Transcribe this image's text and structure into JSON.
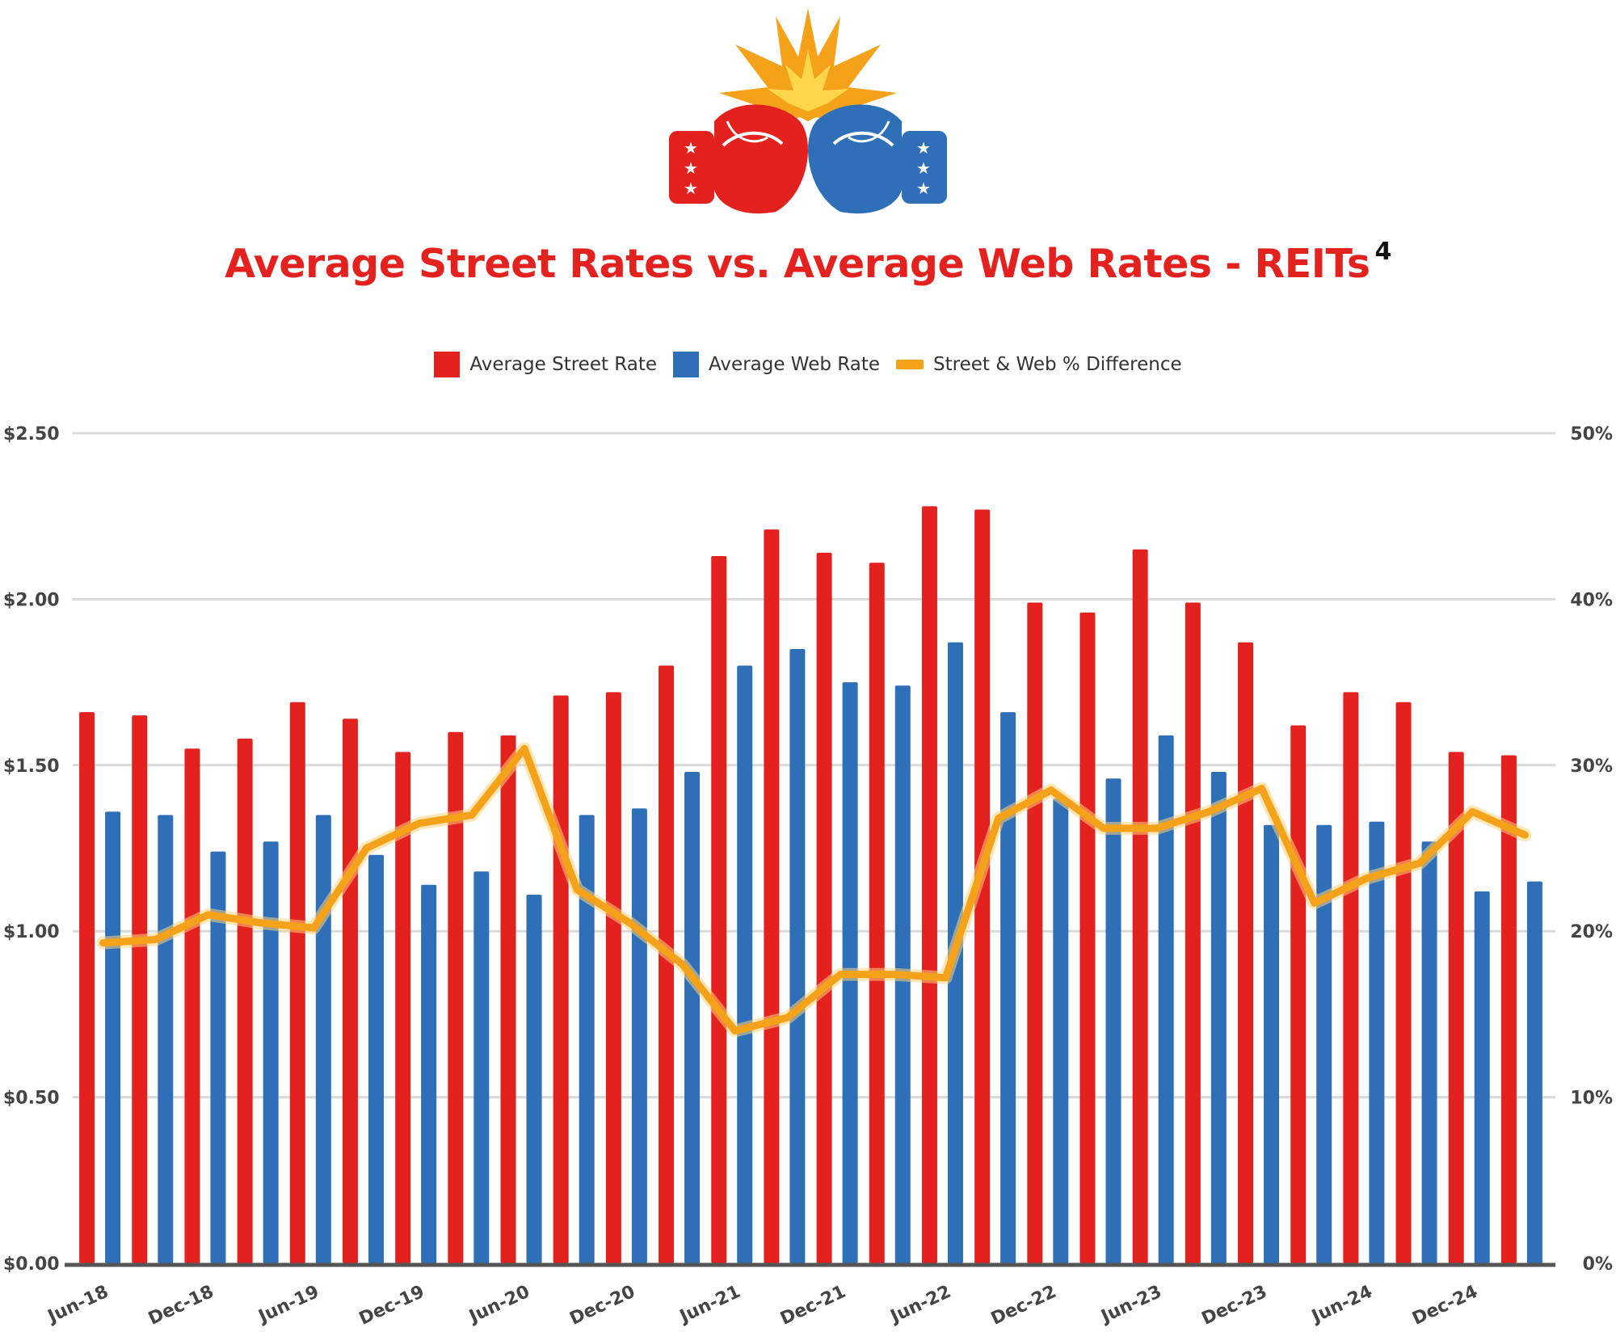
{
  "chart_data": {
    "type": "bar",
    "title": "Average Street Rates vs. Average Web Rates - REITs",
    "title_superscript": "4",
    "legend_position": "top",
    "grid": true,
    "categories": [
      "Jun-18",
      "Sep-18",
      "Dec-18",
      "Mar-19",
      "Jun-19",
      "Sep-19",
      "Dec-19",
      "Mar-20",
      "Jun-20",
      "Sep-20",
      "Dec-20",
      "Mar-21",
      "Jun-21",
      "Sep-21",
      "Dec-21",
      "Mar-22",
      "Jun-22",
      "Sep-22",
      "Dec-22",
      "Mar-23",
      "Jun-23",
      "Sep-23",
      "Dec-23",
      "Mar-24",
      "Jun-24",
      "Sep-24",
      "Dec-24",
      "Mar-25"
    ],
    "x_tick_labels": [
      "Jun-18",
      "Dec-18",
      "Jun-19",
      "Dec-19",
      "Jun-20",
      "Dec-20",
      "Jun-21",
      "Dec-21",
      "Jun-22",
      "Dec-22",
      "Jun-23",
      "Dec-23",
      "Jun-24",
      "Dec-24"
    ],
    "ylim": [
      0,
      2.5
    ],
    "y_ticks": [
      "$0.00",
      "$0.50",
      "$1.00",
      "$1.50",
      "$2.00",
      "$2.50"
    ],
    "y2lim": [
      0,
      50
    ],
    "y2_ticks": [
      "0%",
      "10%",
      "20%",
      "30%",
      "40%",
      "50%"
    ],
    "series": [
      {
        "name": "Average Street Rate",
        "kind": "bar",
        "color": "#e3221f",
        "values": [
          1.66,
          1.65,
          1.55,
          1.58,
          1.69,
          1.64,
          1.54,
          1.6,
          1.59,
          1.71,
          1.72,
          1.8,
          2.13,
          2.21,
          2.14,
          2.11,
          2.28,
          2.27,
          1.99,
          1.96,
          2.15,
          1.99,
          1.87,
          1.62,
          1.72,
          1.69,
          1.54,
          1.53
        ]
      },
      {
        "name": "Average Web Rate",
        "kind": "bar",
        "color": "#2f6fb8",
        "values": [
          1.36,
          1.35,
          1.24,
          1.27,
          1.35,
          1.23,
          1.14,
          1.18,
          1.11,
          1.35,
          1.37,
          1.48,
          1.8,
          1.85,
          1.75,
          1.74,
          1.87,
          1.66,
          1.4,
          1.46,
          1.59,
          1.48,
          1.32,
          1.32,
          1.33,
          1.27,
          1.12,
          1.15
        ]
      },
      {
        "name": "Street & Web % Difference",
        "kind": "line",
        "color": "#f5a21b",
        "values": [
          19.3,
          19.5,
          21.0,
          20.5,
          20.2,
          25.0,
          26.5,
          27.0,
          31.0,
          22.5,
          20.5,
          18.0,
          14.0,
          14.8,
          17.4,
          17.4,
          17.2,
          26.8,
          28.5,
          26.2,
          26.2,
          27.2,
          28.6,
          21.7,
          23.2,
          24.1,
          27.2,
          25.8
        ]
      }
    ]
  },
  "colors": {
    "street": "#e3221f",
    "web": "#2f6fb8",
    "difference": "#f5a21b",
    "grid": "#d9d9d9",
    "axis": "#555555"
  },
  "logo_icon": "boxing-gloves-clash-icon"
}
